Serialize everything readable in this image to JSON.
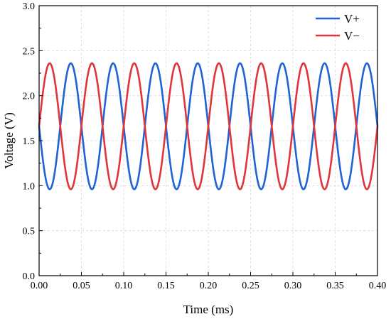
{
  "chart_data": {
    "type": "line",
    "xlabel": "Time (ms)",
    "ylabel": "Voltage (V)",
    "xlim": [
      0.0,
      0.4
    ],
    "ylim": [
      0.0,
      3.0
    ],
    "x_ticks": [
      "0.00",
      "0.05",
      "0.10",
      "0.15",
      "0.20",
      "0.25",
      "0.30",
      "0.35",
      "0.40"
    ],
    "y_ticks": [
      "0.0",
      "0.5",
      "1.0",
      "1.5",
      "2.0",
      "2.5",
      "3.0"
    ],
    "grid": true,
    "legend_position": "top-right",
    "series": [
      {
        "name": "V+",
        "color": "#1f63d6",
        "shape": "sine",
        "offset": 1.66,
        "amplitude": 0.7,
        "period_ms": 0.05,
        "phase_deg": 180,
        "x_start": 0.0,
        "x_end": 0.4
      },
      {
        "name": "V−",
        "color": "#e0353b",
        "shape": "sine",
        "offset": 1.66,
        "amplitude": 0.7,
        "period_ms": 0.05,
        "phase_deg": 0,
        "x_start": 0.0,
        "x_end": 0.4
      }
    ]
  }
}
